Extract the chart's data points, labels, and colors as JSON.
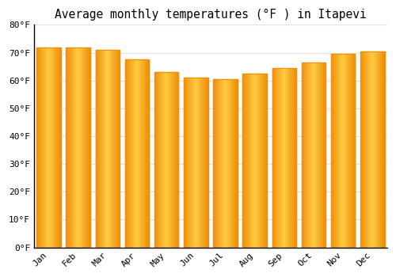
{
  "title": "Average monthly temperatures (°F ) in Itapevi",
  "months": [
    "Jan",
    "Feb",
    "Mar",
    "Apr",
    "May",
    "Jun",
    "Jul",
    "Aug",
    "Sep",
    "Oct",
    "Nov",
    "Dec"
  ],
  "values": [
    72,
    72,
    71,
    67.5,
    63,
    61,
    60.5,
    62.5,
    64.5,
    66.5,
    69.5,
    70.5
  ],
  "bar_color_center": "#FFCC44",
  "bar_color_edge": "#F0900A",
  "ylim": [
    0,
    80
  ],
  "yticks": [
    0,
    10,
    20,
    30,
    40,
    50,
    60,
    70,
    80
  ],
  "background_color": "#FFFFFF",
  "grid_color": "#E0E0E0",
  "title_fontsize": 10.5,
  "tick_fontsize": 8,
  "bar_width": 0.82
}
